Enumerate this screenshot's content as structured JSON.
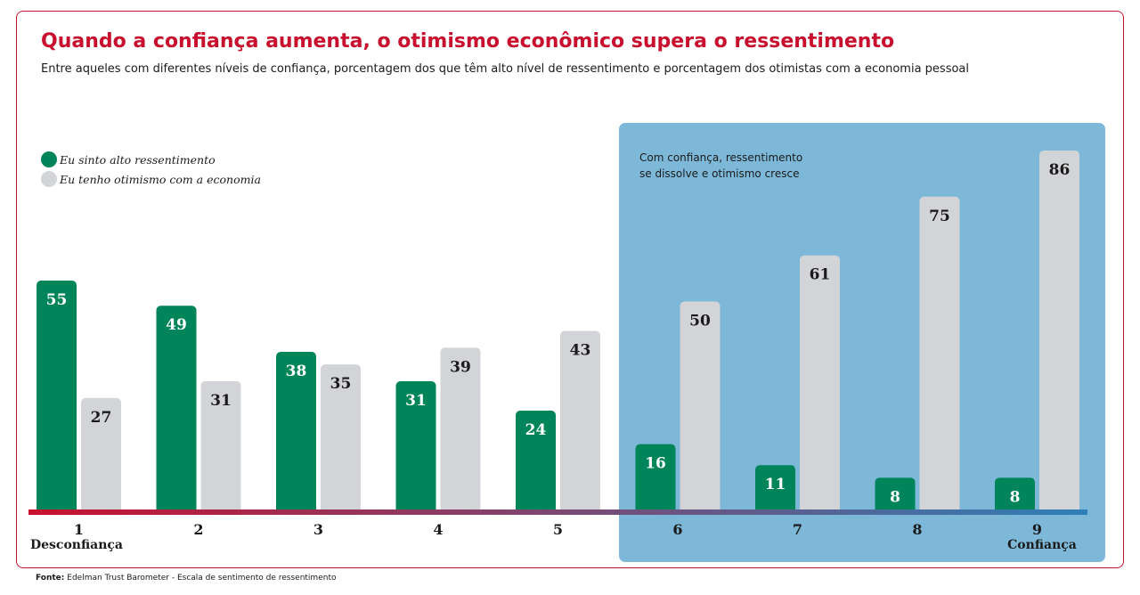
{
  "title": "Quando a confiança aumenta, o otimismo econômico supera o ressentimento",
  "subtitle": "Entre aqueles com diferentes níveis de confiança, porcentagem dos que têm alto nível de ressentimento e porcentagem dos otimistas com a economia pessoal",
  "legend": [
    {
      "label": "Eu sinto alto ressentimento",
      "color": "#00845a"
    },
    {
      "label": "Eu tenho otimismo com a economia",
      "color": "#d3d4d8"
    }
  ],
  "highlight_note": [
    "Com confiança, ressentimento",
    "se dissolve e otimismo cresce"
  ],
  "axis_end_labels": {
    "left": "Desconfiança",
    "right": "Confiança"
  },
  "footnote": {
    "label": "Fonte:",
    "text": "Edelman Trust Barometer - Escala de sentimento de ressentimento"
  },
  "colors": {
    "brand": "#c8102e",
    "highlight_bg": "#7db8d9",
    "axis_start": "#c8102e",
    "axis_end": "#2e80b8"
  },
  "chart_data": {
    "type": "bar",
    "categories": [
      "1",
      "2",
      "3",
      "4",
      "5",
      "6",
      "7",
      "8",
      "9"
    ],
    "series": [
      {
        "name": "Eu sinto alto ressentimento",
        "values": [
          55,
          49,
          38,
          31,
          24,
          16,
          11,
          8,
          8
        ]
      },
      {
        "name": "Eu tenho otimismo com a economia",
        "values": [
          27,
          31,
          35,
          39,
          43,
          50,
          61,
          75,
          86
        ]
      }
    ],
    "ylim": [
      0,
      86
    ],
    "highlighted_categories": [
      "6",
      "7",
      "8",
      "9"
    ],
    "grid": false,
    "legend_position": "top-left"
  }
}
